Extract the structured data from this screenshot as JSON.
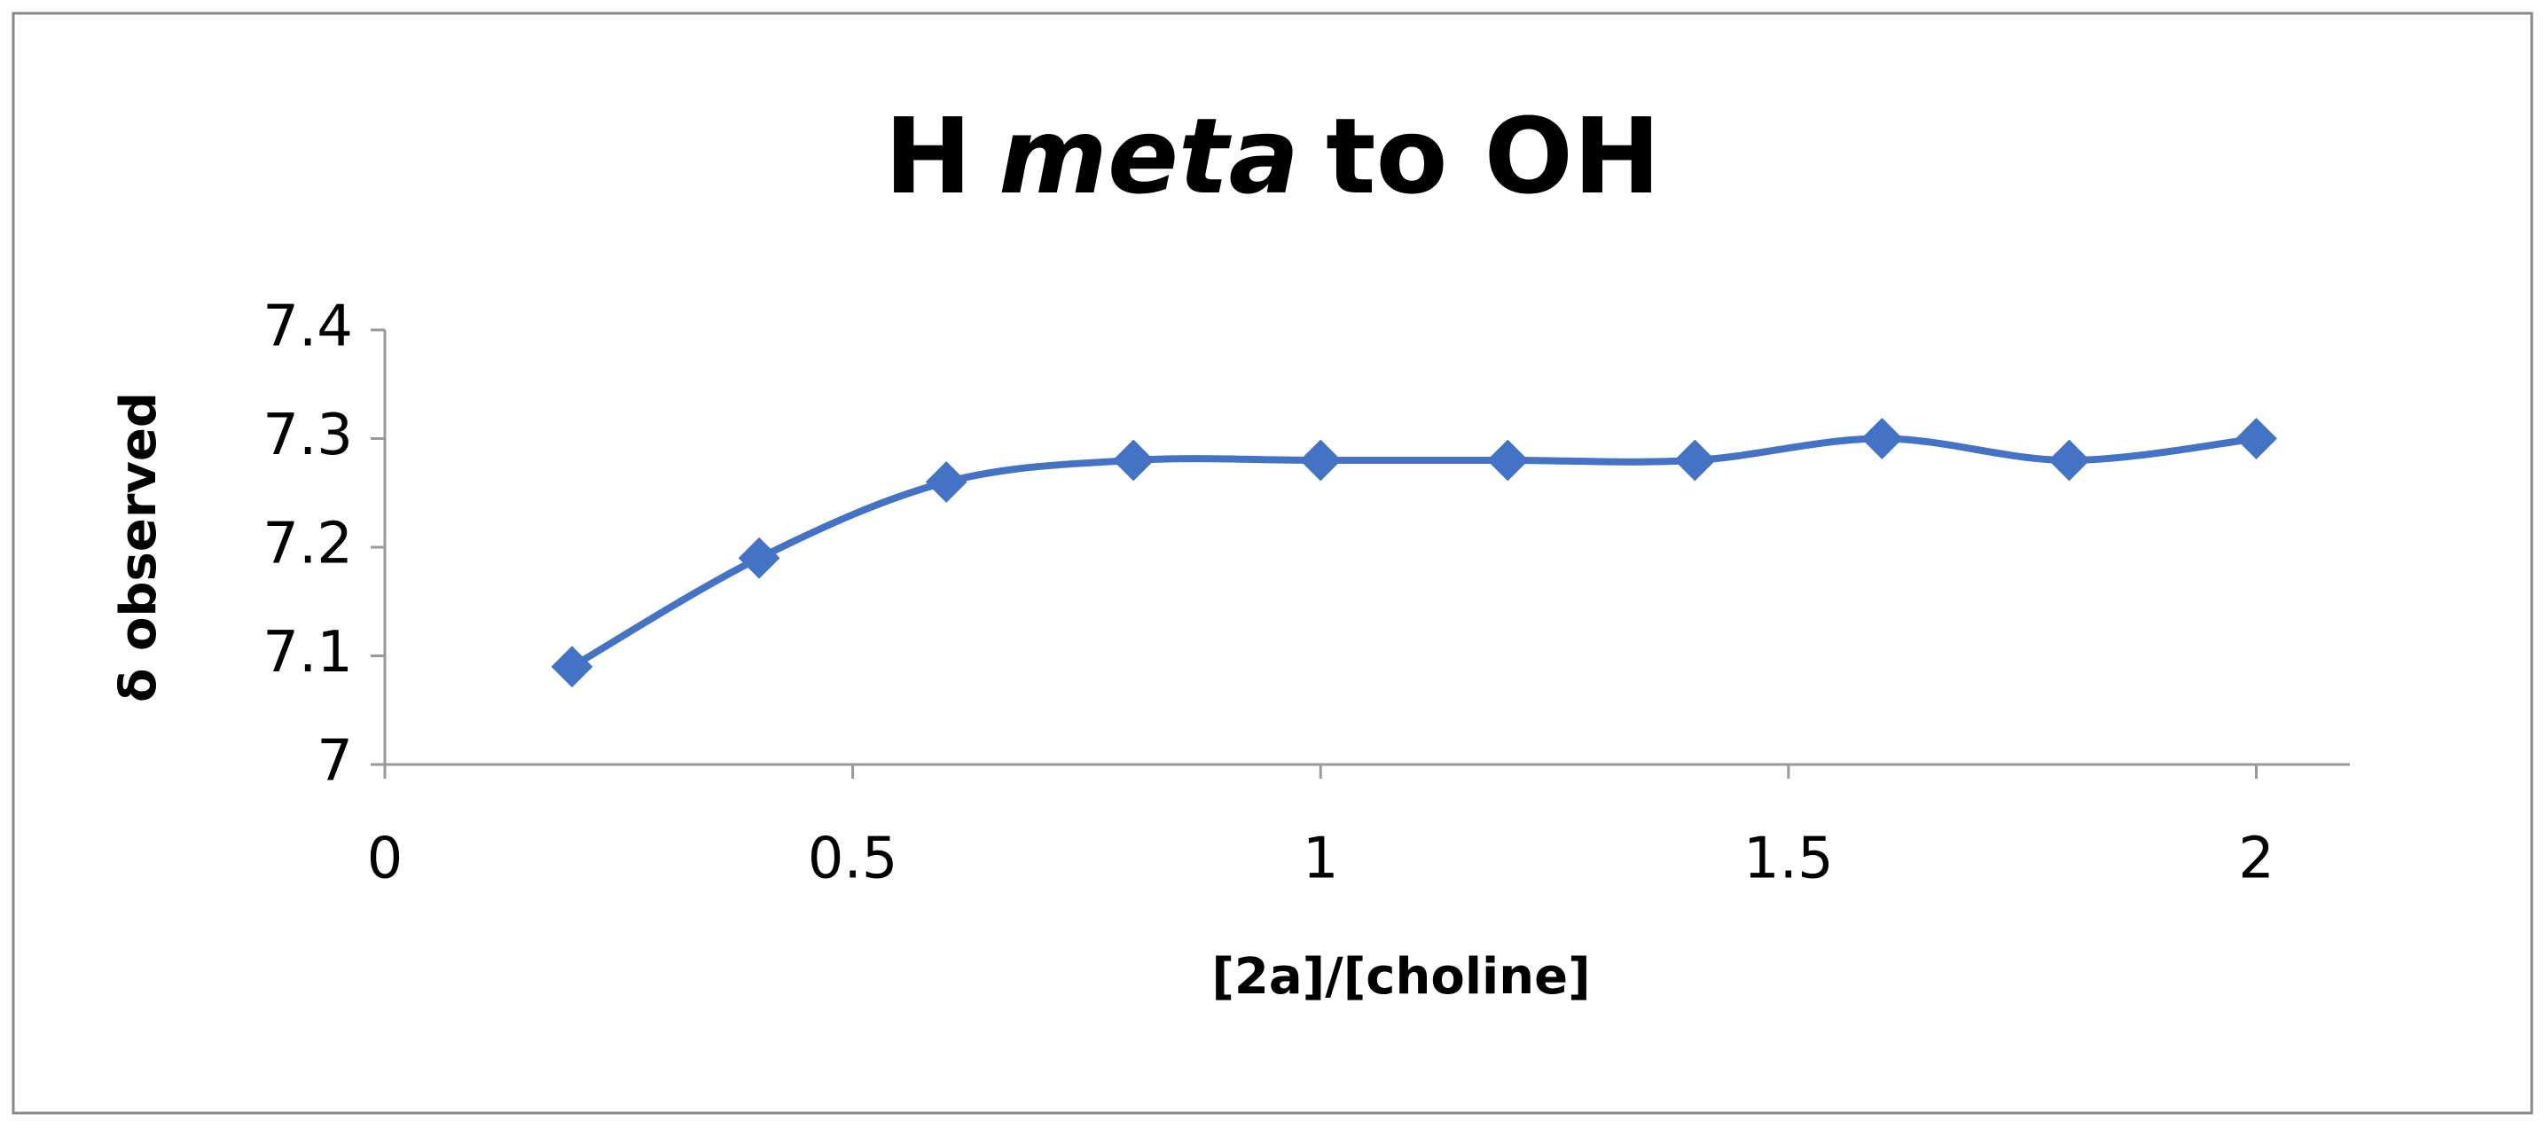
{
  "chart_data": {
    "type": "line",
    "title": [
      {
        "text": "H"
      },
      {
        "text": "meta",
        "italic": true
      },
      {
        "text": "to OH"
      }
    ],
    "x_label": "[2a]/[choline]",
    "y_label": "δ observed",
    "x": [
      0.2,
      0.4,
      0.6,
      0.8,
      1,
      1.2,
      1.4,
      1.6,
      1.8,
      2
    ],
    "series": [
      {
        "name": "H meta to OH",
        "color": "#4472c4",
        "values": [
          7.09,
          7.19,
          7.26,
          7.28,
          7.28,
          7.28,
          7.28,
          7.3,
          7.28,
          7.3
        ]
      }
    ],
    "xlim": [
      0,
      2.1
    ],
    "xticks": [
      0,
      0.5,
      1,
      1.5,
      2
    ],
    "ylim": [
      7,
      7.4
    ],
    "yticks": [
      7,
      7.1,
      7.2,
      7.3,
      7.4
    ],
    "grid": false,
    "smooth": true
  }
}
